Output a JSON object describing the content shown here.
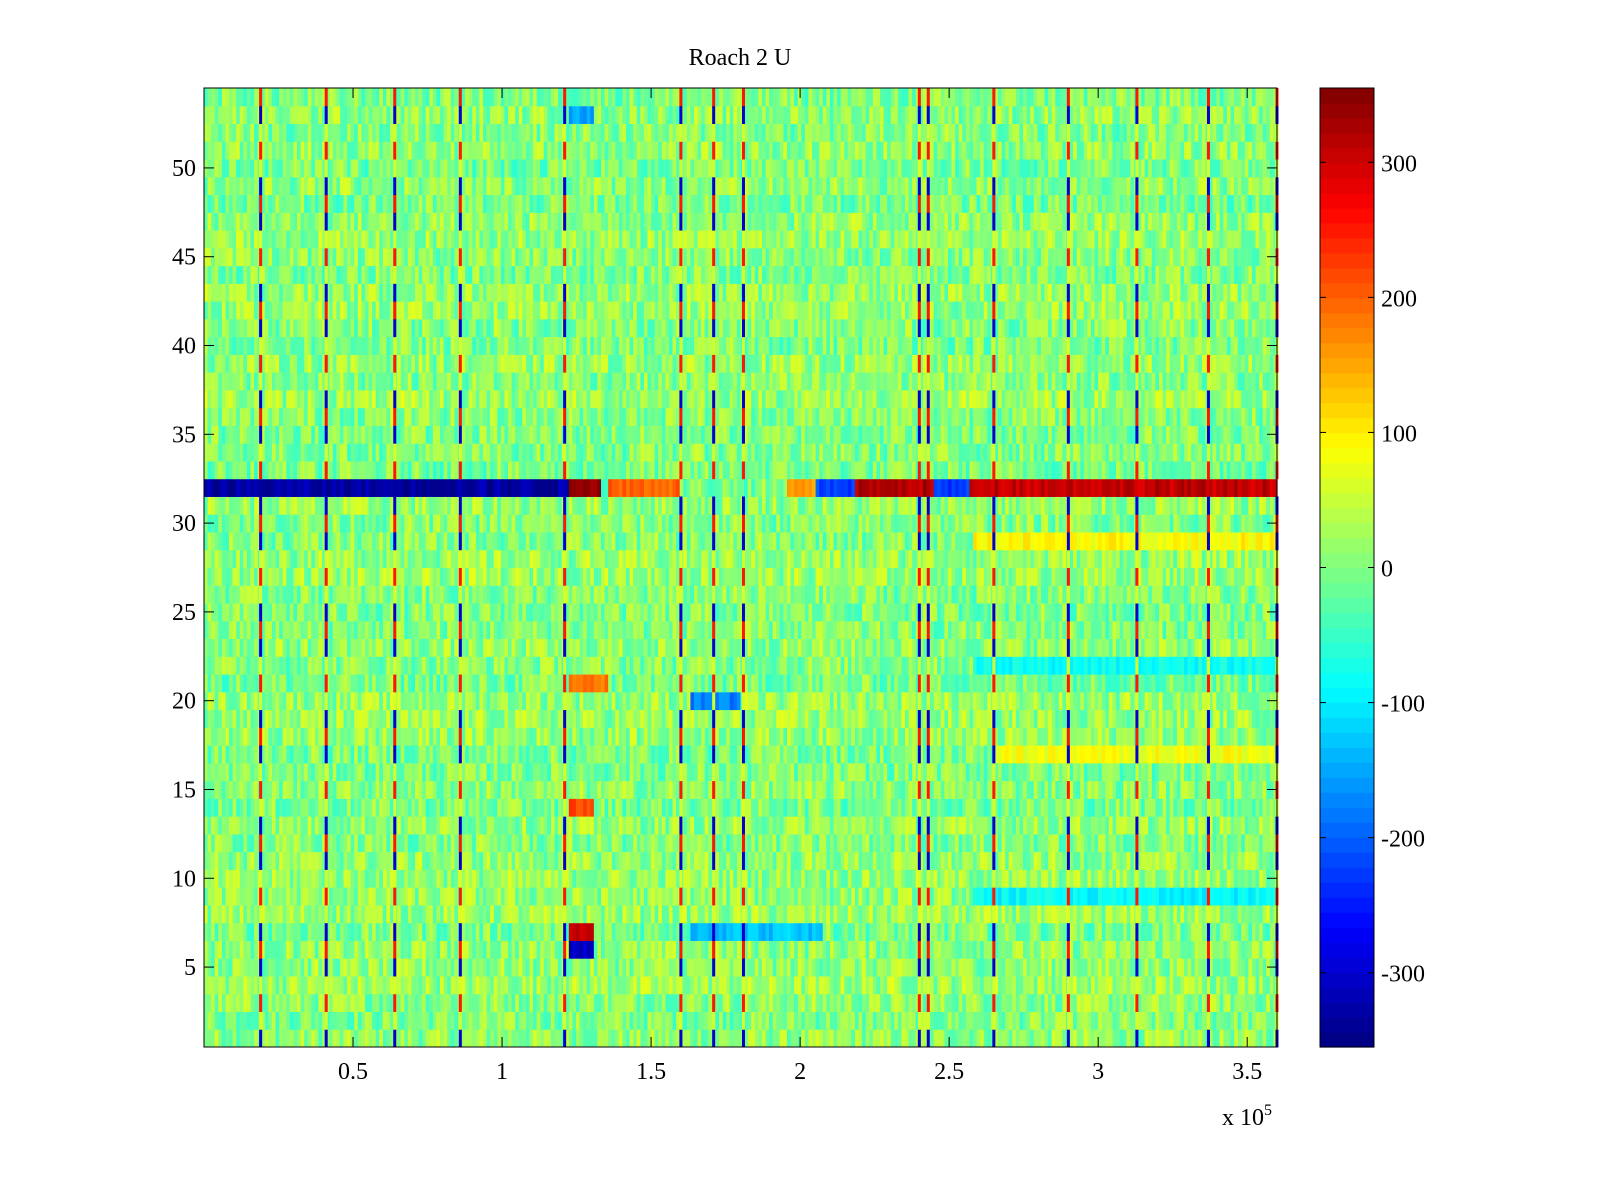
{
  "chart_data": {
    "type": "heatmap",
    "title": "Roach 2 U",
    "xlabel": "",
    "ylabel": "",
    "x_exponent_label": "x 10",
    "x_exponent": "5",
    "xlim": [
      0,
      360000
    ],
    "ylim": [
      0.5,
      54.5
    ],
    "rows": 54,
    "xticks": [
      0.5,
      1,
      1.5,
      2,
      2.5,
      3,
      3.5
    ],
    "xtick_labels": [
      "0.5",
      "1",
      "1.5",
      "2",
      "2.5",
      "3",
      "3.5"
    ],
    "yticks": [
      5,
      10,
      15,
      20,
      25,
      30,
      35,
      40,
      45,
      50
    ],
    "ytick_labels": [
      "5",
      "10",
      "15",
      "20",
      "25",
      "30",
      "35",
      "40",
      "45",
      "50"
    ],
    "colorbar": {
      "colormap": "jet",
      "clim": [
        -355,
        355
      ],
      "ticks": [
        300,
        200,
        100,
        0,
        -100,
        -200,
        -300
      ],
      "tick_labels": [
        "300",
        "200",
        "100",
        "0",
        "-100",
        "-200",
        "-300"
      ]
    },
    "background_value_range": [
      -60,
      60
    ],
    "vertical_artifact_x": [
      19000,
      41000,
      64000,
      86000,
      121000,
      160000,
      171000,
      181000,
      240000,
      243000,
      265000,
      290000,
      313000,
      337000,
      360000
    ],
    "row_segments": [
      {
        "row": 32,
        "x_from": 0,
        "x_to": 122000,
        "value": -330
      },
      {
        "row": 32,
        "x_from": 123000,
        "x_to": 133000,
        "value": 350
      },
      {
        "row": 32,
        "x_from": 136000,
        "x_to": 160000,
        "value": 200
      },
      {
        "row": 32,
        "x_from": 196000,
        "x_to": 205000,
        "value": 150
      },
      {
        "row": 32,
        "x_from": 205000,
        "x_to": 218000,
        "value": -220
      },
      {
        "row": 32,
        "x_from": 218000,
        "x_to": 245000,
        "value": 320
      },
      {
        "row": 32,
        "x_from": 245000,
        "x_to": 257000,
        "value": -230
      },
      {
        "row": 32,
        "x_from": 257000,
        "x_to": 360000,
        "value": 310
      },
      {
        "row": 7,
        "x_from": 122000,
        "x_to": 131000,
        "value": 300
      },
      {
        "row": 6,
        "x_from": 122000,
        "x_to": 131000,
        "value": -300
      },
      {
        "row": 14,
        "x_from": 122000,
        "x_to": 131000,
        "value": 220
      },
      {
        "row": 21,
        "x_from": 122000,
        "x_to": 136000,
        "value": 180
      },
      {
        "row": 29,
        "x_from": 258000,
        "x_to": 360000,
        "value": 90
      },
      {
        "row": 17,
        "x_from": 265000,
        "x_to": 360000,
        "value": 80
      },
      {
        "row": 9,
        "x_from": 258000,
        "x_to": 360000,
        "value": -90
      },
      {
        "row": 22,
        "x_from": 258000,
        "x_to": 360000,
        "value": -80
      },
      {
        "row": 20,
        "x_from": 163000,
        "x_to": 180000,
        "value": -180
      },
      {
        "row": 7,
        "x_from": 163000,
        "x_to": 208000,
        "value": -130
      },
      {
        "row": 53,
        "x_from": 122000,
        "x_to": 131000,
        "value": -150
      }
    ]
  }
}
